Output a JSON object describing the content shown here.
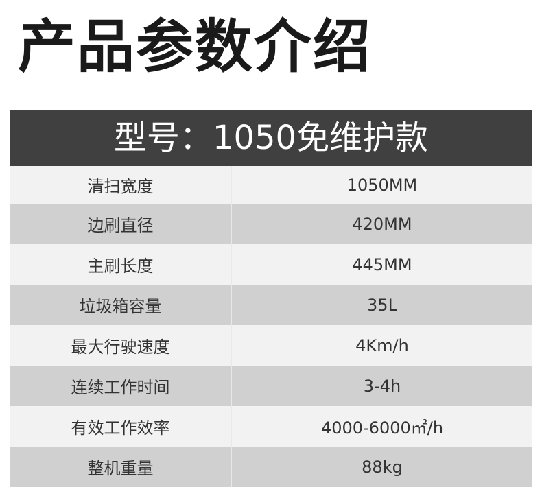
{
  "title": "产品参数介绍",
  "table": {
    "header": "型号：1050免维护款",
    "rows": [
      {
        "label": "清扫宽度",
        "value": "1050MM"
      },
      {
        "label": "边刷直径",
        "value": "420MM"
      },
      {
        "label": "主刷长度",
        "value": "445MM"
      },
      {
        "label": "垃圾箱容量",
        "value": "35L"
      },
      {
        "label": "最大行驶速度",
        "value": "4Km/h"
      },
      {
        "label": "连续工作时间",
        "value": "3-4h"
      },
      {
        "label": "有效工作效率",
        "value": "4000-6000㎡/h"
      },
      {
        "label": "整机重量",
        "value": "88kg"
      }
    ]
  },
  "colors": {
    "header_bg": "#404040",
    "row_light": "#f2f2f2",
    "row_gray": "#d0d0d0"
  }
}
